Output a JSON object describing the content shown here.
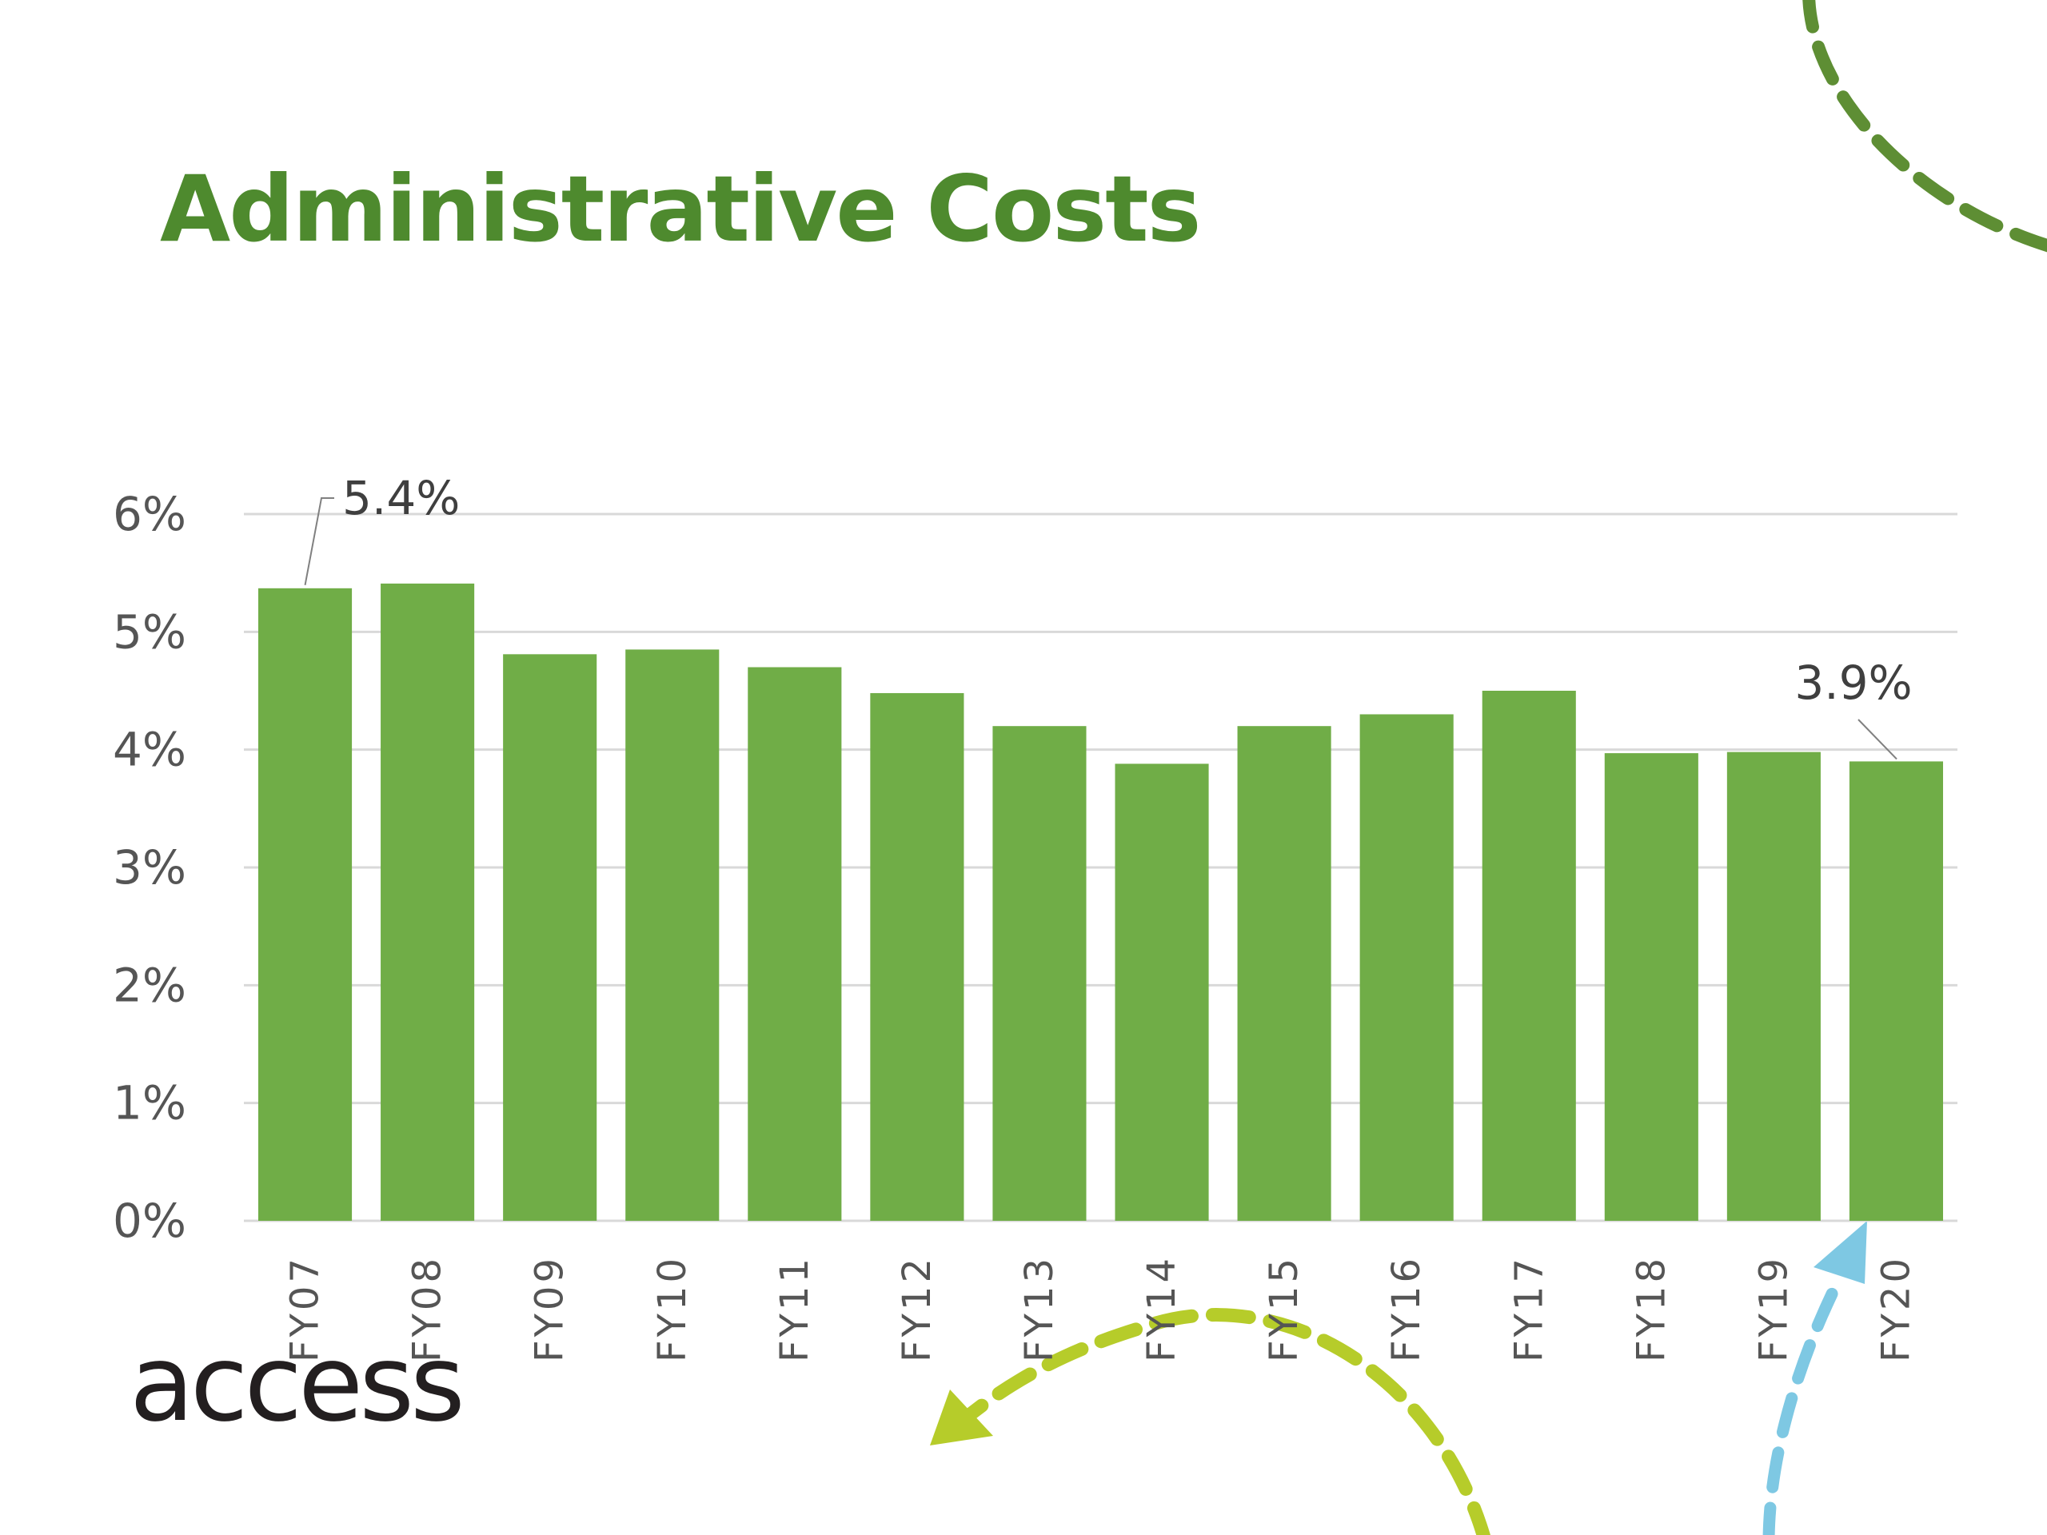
{
  "slide": {
    "title": "Administrative Costs",
    "logo_text": "access"
  },
  "colors": {
    "title": "#4e8a2e",
    "bar": "#70ad47",
    "grid": "#d9d9d9",
    "deco_green": "#5e8e34",
    "deco_lime": "#b6cc2a",
    "deco_blue": "#7ec8e3"
  },
  "chart_data": {
    "type": "bar",
    "title": "",
    "xlabel": "",
    "ylabel": "",
    "categories": [
      "FY07",
      "FY08",
      "FY09",
      "FY10",
      "FY11",
      "FY12",
      "FY13",
      "FY14",
      "FY15",
      "FY16",
      "FY17",
      "FY18",
      "FY19",
      "FY20"
    ],
    "values": [
      5.37,
      5.41,
      4.81,
      4.85,
      4.7,
      4.48,
      4.2,
      3.88,
      4.2,
      4.3,
      4.5,
      3.97,
      3.98,
      3.9
    ],
    "ylim": [
      0,
      6
    ],
    "yticks": [
      "0%",
      "1%",
      "2%",
      "3%",
      "4%",
      "5%",
      "6%"
    ],
    "grid": true,
    "legend": "none",
    "data_labels": [
      {
        "category": "FY07",
        "text": "5.4%"
      },
      {
        "category": "FY20",
        "text": "3.9%"
      }
    ]
  }
}
